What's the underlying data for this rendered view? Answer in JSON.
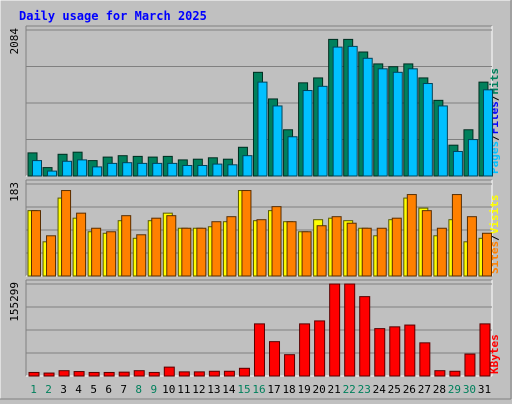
{
  "chart_data": [
    {
      "type": "bar",
      "title": "Daily usage for March 2025",
      "categories": [
        "1",
        "2",
        "3",
        "4",
        "5",
        "6",
        "7",
        "8",
        "9",
        "10",
        "11",
        "12",
        "13",
        "14",
        "15",
        "16",
        "17",
        "18",
        "19",
        "20",
        "21",
        "22",
        "23",
        "24",
        "25",
        "26",
        "27",
        "28",
        "29",
        "30",
        "31"
      ],
      "weekend_days": [
        "1",
        "2",
        "8",
        "9",
        "15",
        "16",
        "22",
        "23",
        "29",
        "30"
      ],
      "ylabel_parts": [
        "Pages",
        "/",
        "Files",
        "/",
        "Hits"
      ],
      "ymax_label": "2084",
      "ylim": [
        0,
        2084
      ],
      "series": [
        {
          "name": "Hits",
          "color": "#00805c",
          "values": [
            330,
            120,
            310,
            340,
            220,
            270,
            290,
            280,
            270,
            280,
            230,
            240,
            260,
            240,
            410,
            1480,
            1100,
            660,
            1330,
            1400,
            1950,
            1950,
            1770,
            1600,
            1560,
            1600,
            1400,
            1080,
            440,
            660,
            1340
          ]
        },
        {
          "name": "Files",
          "color": "#0000ff",
          "values": [
            0,
            0,
            0,
            0,
            0,
            0,
            0,
            0,
            0,
            0,
            0,
            0,
            0,
            0,
            0,
            0,
            0,
            0,
            0,
            0,
            0,
            0,
            0,
            0,
            0,
            0,
            0,
            0,
            0,
            0,
            0
          ]
        },
        {
          "name": "Pages",
          "color": "#00c0ff",
          "values": [
            220,
            70,
            210,
            230,
            130,
            180,
            190,
            180,
            180,
            180,
            150,
            150,
            170,
            160,
            290,
            1340,
            1000,
            560,
            1220,
            1280,
            1840,
            1850,
            1680,
            1530,
            1480,
            1530,
            1320,
            1000,
            350,
            520,
            1230
          ]
        }
      ]
    },
    {
      "type": "bar",
      "categories": [
        "1",
        "2",
        "3",
        "4",
        "5",
        "6",
        "7",
        "8",
        "9",
        "10",
        "11",
        "12",
        "13",
        "14",
        "15",
        "16",
        "17",
        "18",
        "19",
        "20",
        "21",
        "22",
        "23",
        "24",
        "25",
        "26",
        "27",
        "28",
        "29",
        "30",
        "31"
      ],
      "ylabel_parts": [
        "Sites",
        "/",
        "Visits"
      ],
      "ymax_label": "183",
      "ylim": [
        0,
        183
      ],
      "series": [
        {
          "name": "Visits",
          "color": "#ffff00",
          "values": [
            130,
            68,
            155,
            115,
            88,
            85,
            110,
            75,
            110,
            125,
            95,
            95,
            98,
            108,
            170,
            110,
            130,
            108,
            88,
            112,
            115,
            110,
            95,
            80,
            112,
            155,
            135,
            80,
            112,
            68,
            75
          ]
        },
        {
          "name": "Sites",
          "color": "#ff8000",
          "values": [
            130,
            80,
            170,
            125,
            95,
            88,
            120,
            82,
            115,
            120,
            95,
            95,
            108,
            118,
            170,
            112,
            138,
            108,
            88,
            100,
            118,
            105,
            95,
            95,
            115,
            162,
            130,
            95,
            162,
            118,
            85
          ]
        }
      ]
    },
    {
      "type": "bar",
      "ylabel_parts": [
        "KBytes"
      ],
      "ymax_label": "155299",
      "ylim": [
        0,
        155299
      ],
      "categories": [
        "1",
        "2",
        "3",
        "4",
        "5",
        "6",
        "7",
        "8",
        "9",
        "10",
        "11",
        "12",
        "13",
        "14",
        "15",
        "16",
        "17",
        "18",
        "19",
        "20",
        "21",
        "22",
        "23",
        "24",
        "25",
        "26",
        "27",
        "28",
        "29",
        "30",
        "31"
      ],
      "series": [
        {
          "name": "KBytes",
          "color": "#ff0000",
          "values": [
            6000,
            5000,
            9000,
            7500,
            6000,
            6000,
            6500,
            9000,
            6000,
            15000,
            7000,
            7000,
            8000,
            8000,
            13000,
            88000,
            58000,
            36000,
            88000,
            93000,
            155299,
            155299,
            134000,
            80000,
            83000,
            86000,
            56000,
            9000,
            8000,
            37000,
            88000
          ]
        }
      ]
    }
  ],
  "colors": {
    "background": "#c0c0c0",
    "plot_area": "#c0c0c0",
    "title": "#0000ff",
    "day_weekday": "#000000",
    "day_weekend": "#00805c"
  }
}
